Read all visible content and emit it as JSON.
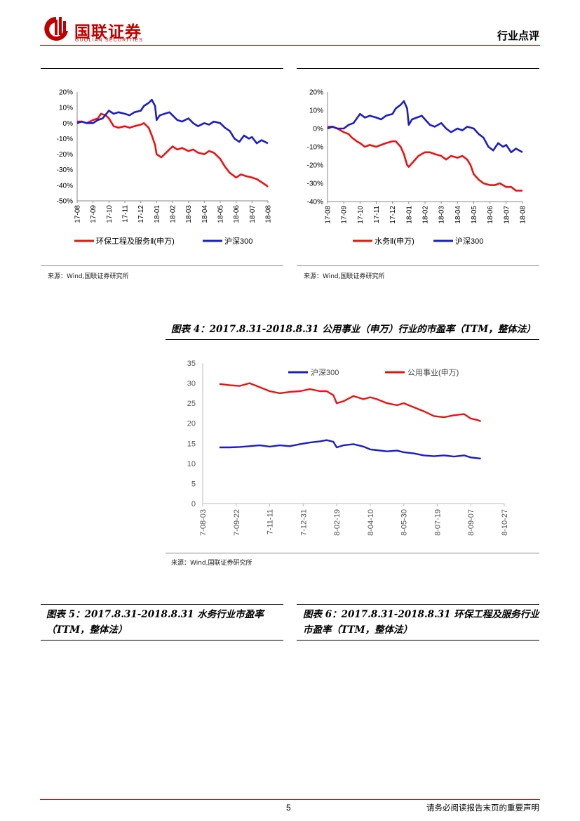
{
  "header": {
    "logo_cn": "国联证券",
    "logo_en": "GUOLIAN SECURITIES",
    "section": "行业点评"
  },
  "footer": {
    "page_number": "5",
    "disclaimer": "请务必阅读报告末页的重要声明"
  },
  "sources": {
    "left": "来源：Wind,国联证券研究所",
    "right": "来源：Wind,国联证券研究所",
    "center": "来源：Wind,国联证券研究所"
  },
  "figures": {
    "fig4_title": "图表 4：2017.8.31-2018.8.31 公用事业（申万）行业的市盈率（TTM，整体法）",
    "fig5_title_l1": "图表 5：2017.8.31-2018.8.31 水务行业市盈率",
    "fig5_title_l2": "（TTM，整体法）",
    "fig6_title_l1": "图表 6：2017.8.31-2018.8.31 环保工程及服务行业",
    "fig6_title_l2": "市盈率（TTM，整体法）"
  },
  "colors": {
    "red": "#ee1111",
    "blue": "#1c1ccc",
    "brand": "#c00000"
  },
  "chart_data": [
    {
      "type": "line",
      "x_ticks": [
        "17-08",
        "17-09",
        "17-10",
        "17-11",
        "17-12",
        "18-01",
        "18-02",
        "18-03",
        "18-04",
        "18-05",
        "18-06",
        "18-07",
        "18-08"
      ],
      "y_ticks": [
        "20%",
        "10%",
        "0%",
        "-10%",
        "-20%",
        "-30%",
        "-40%",
        "-50%"
      ],
      "ylim": [
        -50,
        20
      ],
      "series": [
        {
          "name": "环保工程及服务Ⅱ(申万)",
          "color": "#ee1111",
          "x": [
            0,
            0.3,
            0.6,
            1,
            1.3,
            1.5,
            1.8,
            2,
            2.3,
            2.6,
            3,
            3.3,
            3.6,
            4,
            4.2,
            4.5,
            4.7,
            4.9,
            5,
            5.3,
            5.6,
            6,
            6.3,
            6.6,
            7,
            7.3,
            7.6,
            8,
            8.3,
            8.6,
            8.8,
            9,
            9.3,
            9.6,
            10,
            10.3,
            10.6,
            11,
            11.3,
            11.6,
            11.9,
            12
          ],
          "y": [
            1,
            1,
            0,
            2,
            3,
            6,
            5,
            3,
            -2,
            -3,
            -2,
            -3,
            -2,
            -1,
            0,
            -3,
            -8,
            -14,
            -20,
            -22,
            -19,
            -15,
            -17,
            -16,
            -18,
            -17,
            -19,
            -20,
            -18,
            -19,
            -21,
            -23,
            -28,
            -32,
            -35,
            -33,
            -34,
            -35,
            -36,
            -38,
            -40,
            -41
          ]
        },
        {
          "name": "沪深300",
          "color": "#1c1ccc",
          "x": [
            0,
            0.3,
            0.6,
            1,
            1.3,
            1.6,
            2,
            2.3,
            2.6,
            3,
            3.3,
            3.6,
            4,
            4.2,
            4.5,
            4.7,
            4.9,
            5,
            5.2,
            5.5,
            5.8,
            6,
            6.3,
            6.6,
            7,
            7.3,
            7.6,
            8,
            8.3,
            8.6,
            9,
            9.3,
            9.6,
            9.9,
            10.2,
            10.5,
            10.8,
            11,
            11.3,
            11.6,
            12
          ],
          "y": [
            0,
            1,
            0,
            0,
            2,
            3,
            8,
            6,
            7,
            6,
            5,
            7,
            8,
            11,
            13,
            15,
            11,
            2,
            5,
            6,
            7,
            5,
            2,
            1,
            3,
            0,
            -2,
            0,
            -1,
            1,
            0,
            -3,
            -5,
            -10,
            -12,
            -8,
            -10,
            -9,
            -13,
            -11,
            -13
          ]
        }
      ]
    },
    {
      "type": "line",
      "x_ticks": [
        "17-08",
        "17-09",
        "17-10",
        "17-11",
        "17-12",
        "18-01",
        "18-02",
        "18-03",
        "18-04",
        "18-05",
        "18-06",
        "18-07",
        "18-08"
      ],
      "y_ticks": [
        "20%",
        "10%",
        "0%",
        "-10%",
        "-20%",
        "-30%",
        "-40%"
      ],
      "ylim": [
        -40,
        20
      ],
      "series": [
        {
          "name": "水务Ⅱ(申万)",
          "color": "#ee1111",
          "x": [
            0,
            0.3,
            0.6,
            1,
            1.3,
            1.5,
            1.8,
            2,
            2.3,
            2.6,
            3,
            3.3,
            3.6,
            4,
            4.2,
            4.5,
            4.7,
            4.9,
            5,
            5.3,
            5.6,
            6,
            6.3,
            6.6,
            7,
            7.3,
            7.6,
            8,
            8.3,
            8.6,
            8.8,
            9,
            9.3,
            9.6,
            10,
            10.3,
            10.6,
            11,
            11.3,
            11.6,
            12
          ],
          "y": [
            1,
            1,
            0,
            -2,
            -3,
            -5,
            -7,
            -8,
            -10,
            -9,
            -10,
            -9,
            -8,
            -7,
            -7,
            -10,
            -14,
            -20,
            -21,
            -18,
            -15,
            -13,
            -13,
            -14,
            -15,
            -17,
            -15,
            -16,
            -15,
            -17,
            -20,
            -25,
            -28,
            -30,
            -31,
            -31,
            -30,
            -32,
            -32,
            -34,
            -34
          ]
        },
        {
          "name": "沪深300",
          "color": "#1c1ccc",
          "x": [
            0,
            0.3,
            0.6,
            1,
            1.3,
            1.6,
            2,
            2.3,
            2.6,
            3,
            3.3,
            3.6,
            4,
            4.2,
            4.5,
            4.7,
            4.9,
            5,
            5.2,
            5.5,
            5.8,
            6,
            6.3,
            6.6,
            7,
            7.3,
            7.6,
            8,
            8.3,
            8.6,
            9,
            9.3,
            9.6,
            9.9,
            10.2,
            10.5,
            10.8,
            11,
            11.3,
            11.6,
            12
          ],
          "y": [
            0,
            1,
            0,
            0,
            2,
            3,
            8,
            6,
            7,
            6,
            5,
            7,
            8,
            11,
            13,
            15,
            11,
            2,
            5,
            6,
            7,
            5,
            2,
            1,
            3,
            0,
            -2,
            0,
            -1,
            1,
            0,
            -3,
            -5,
            -10,
            -12,
            -8,
            -10,
            -9,
            -13,
            -11,
            -13
          ]
        }
      ]
    },
    {
      "type": "line",
      "x_ticks": [
        "7-08-03",
        "7-09-22",
        "7-11-11",
        "7-12-31",
        "8-02-19",
        "8-04-10",
        "8-05-30",
        "8-07-19",
        "8-09-07",
        "8-10-27"
      ],
      "y_ticks": [
        "35",
        "30",
        "25",
        "20",
        "15",
        "10",
        "5",
        "0"
      ],
      "ylim": [
        0,
        35
      ],
      "series": [
        {
          "name": "沪深300",
          "color": "#1c1ccc",
          "x": [
            0.5,
            0.8,
            1.1,
            1.4,
            1.7,
            2,
            2.3,
            2.6,
            2.9,
            3.2,
            3.5,
            3.7,
            3.9,
            4,
            4.2,
            4.5,
            4.8,
            5,
            5.2,
            5.5,
            5.8,
            6,
            6.3,
            6.6,
            6.9,
            7.2,
            7.5,
            7.8,
            8,
            8.2,
            8.3
          ],
          "y": [
            14,
            14,
            14.1,
            14.3,
            14.5,
            14.2,
            14.5,
            14.3,
            14.8,
            15.2,
            15.5,
            15.8,
            15.4,
            14,
            14.5,
            14.8,
            14.2,
            13.5,
            13.3,
            13,
            13.2,
            12.8,
            12.5,
            12,
            11.8,
            12,
            11.7,
            12,
            11.5,
            11.3,
            11.2
          ]
        },
        {
          "name": "公用事业(申万)",
          "color": "#ee1111",
          "x": [
            0.5,
            0.8,
            1.1,
            1.4,
            1.7,
            2,
            2.3,
            2.6,
            2.9,
            3.2,
            3.5,
            3.7,
            3.9,
            4,
            4.2,
            4.5,
            4.8,
            5,
            5.2,
            5.5,
            5.8,
            6,
            6.3,
            6.6,
            6.9,
            7.2,
            7.5,
            7.8,
            8,
            8.2,
            8.3
          ],
          "y": [
            29.8,
            29.5,
            29.3,
            30,
            29,
            28,
            27.5,
            27.8,
            28,
            28.5,
            28,
            28,
            27,
            25,
            25.5,
            26.8,
            26,
            26.5,
            26,
            25,
            24.5,
            25,
            24,
            23,
            21.8,
            21.5,
            22,
            22.3,
            21.2,
            20.8,
            20.5
          ]
        }
      ]
    }
  ]
}
